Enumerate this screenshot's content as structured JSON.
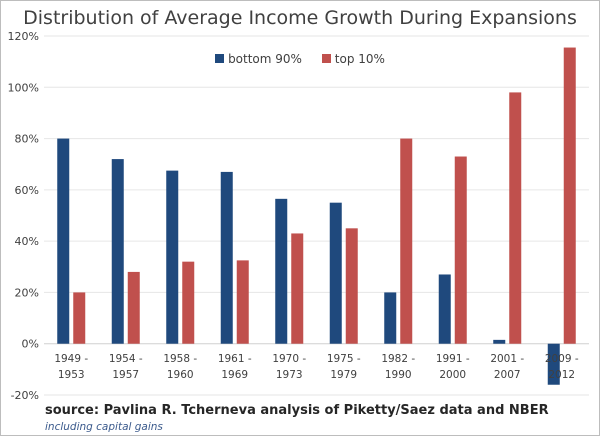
{
  "chart_data": {
    "type": "bar",
    "title": "Distribution of Average Income Growth During Expansions",
    "categories": [
      [
        "1949 -",
        "1953"
      ],
      [
        "1954 -",
        "1957"
      ],
      [
        "1958 -",
        "1960"
      ],
      [
        "1961 -",
        "1969"
      ],
      [
        "1970 -",
        "1973"
      ],
      [
        "1975 -",
        "1979"
      ],
      [
        "1982 -",
        "1990"
      ],
      [
        "1991 -",
        "2000"
      ],
      [
        "2001 -",
        "2007"
      ],
      [
        "2009 -",
        "2012"
      ]
    ],
    "series": [
      {
        "name": "bottom 90%",
        "color": "#1f497d",
        "values": [
          80,
          72,
          67.5,
          67,
          56.5,
          55,
          20,
          27,
          1.5,
          -16
        ]
      },
      {
        "name": "top 10%",
        "color": "#c0504d",
        "values": [
          20,
          28,
          32,
          32.5,
          43,
          45,
          80,
          73,
          98,
          115.5
        ]
      }
    ],
    "ylim": [
      -20,
      120
    ],
    "yticks": [
      "-20%",
      "0%",
      "20%",
      "40%",
      "60%",
      "80%",
      "100%",
      "120%"
    ],
    "ytick_values": [
      -20,
      0,
      20,
      40,
      60,
      80,
      100,
      120
    ],
    "grid": true,
    "legend": "top-center",
    "xlabel": "",
    "ylabel": ""
  },
  "source": "source: Pavlina R. Tcherneva analysis of Piketty/Saez data and NBER",
  "note": "including capital gains"
}
